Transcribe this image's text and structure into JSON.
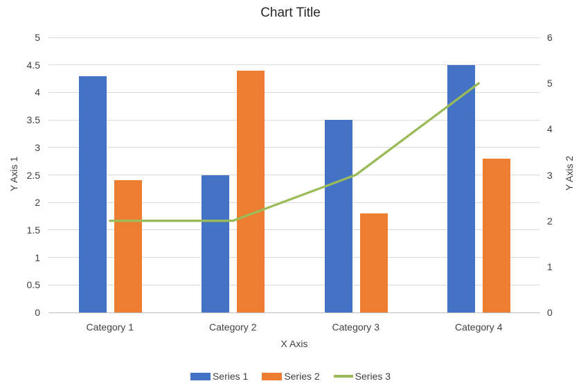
{
  "chart_data": {
    "type": "bar",
    "subtype": "combo-bar-line-dual-axis",
    "title": "Chart Title",
    "xlabel": "X Axis",
    "ylabel_left": "Y Axis 1",
    "ylabel_right": "Y Axis 2",
    "categories": [
      "Category 1",
      "Category 2",
      "Category 3",
      "Category 4"
    ],
    "series": [
      {
        "name": "Series 1",
        "type": "bar",
        "axis": "left",
        "color": "#4472C4",
        "values": [
          4.3,
          2.5,
          3.5,
          4.5
        ]
      },
      {
        "name": "Series 2",
        "type": "bar",
        "axis": "left",
        "color": "#ED7D31",
        "values": [
          2.4,
          4.4,
          1.8,
          2.8
        ]
      },
      {
        "name": "Series 3",
        "type": "line",
        "axis": "right",
        "color": "#9BBB59",
        "values": [
          2,
          2,
          3,
          5
        ]
      }
    ],
    "y_left": {
      "min": 0,
      "max": 5,
      "step": 0.5,
      "ticks": [
        "5",
        "4.5",
        "4",
        "3.5",
        "3",
        "2.5",
        "2",
        "1.5",
        "1",
        "0.5",
        "0"
      ]
    },
    "y_right": {
      "min": 0,
      "max": 6,
      "step": 1,
      "ticks": [
        "6",
        "5",
        "4",
        "3",
        "2",
        "1",
        "0"
      ]
    },
    "grid": true,
    "gridline_color": "#D9D9D9",
    "axis_line_color": "#BFBFBF",
    "legend_position": "bottom"
  }
}
